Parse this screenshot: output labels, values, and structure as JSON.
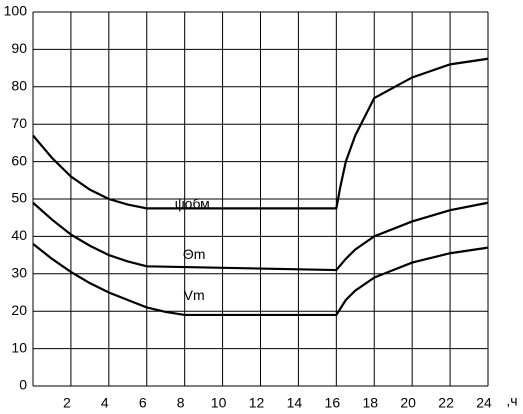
{
  "chart_data": {
    "type": "line",
    "xlabel": ",ч",
    "xlim": [
      0,
      24
    ],
    "ylim": [
      0,
      100
    ],
    "xticks": [
      2,
      4,
      6,
      8,
      10,
      12,
      14,
      16,
      18,
      20,
      22,
      24
    ],
    "yticks": [
      0,
      10,
      20,
      30,
      40,
      50,
      60,
      70,
      80,
      90,
      100
    ],
    "grid": true,
    "color": "#000000",
    "series": [
      {
        "name": "ψобм",
        "x": [
          0,
          1,
          2,
          3,
          4,
          5,
          6,
          16,
          16.2,
          16.5,
          17,
          18,
          20,
          22,
          24
        ],
        "values": [
          67,
          61,
          56,
          52.5,
          50,
          48.5,
          47.5,
          47.5,
          53,
          60,
          67,
          77,
          82.5,
          86,
          87.5
        ]
      },
      {
        "name": "Θm",
        "x": [
          0,
          1,
          2,
          3,
          4,
          5,
          6,
          16,
          16.5,
          17,
          18,
          20,
          22,
          24
        ],
        "values": [
          49,
          44.5,
          40.5,
          37.5,
          35,
          33.3,
          32,
          31,
          34,
          36.5,
          40,
          44,
          47,
          49
        ]
      },
      {
        "name": "Vm",
        "x": [
          0,
          1,
          2,
          3,
          4,
          5,
          6,
          7,
          8,
          16,
          16.5,
          17,
          18,
          20,
          22,
          24
        ],
        "values": [
          38,
          34,
          30.5,
          27.5,
          25,
          23,
          21,
          19.8,
          19,
          19,
          23,
          25.5,
          29,
          33,
          35.5,
          37
        ]
      }
    ]
  }
}
